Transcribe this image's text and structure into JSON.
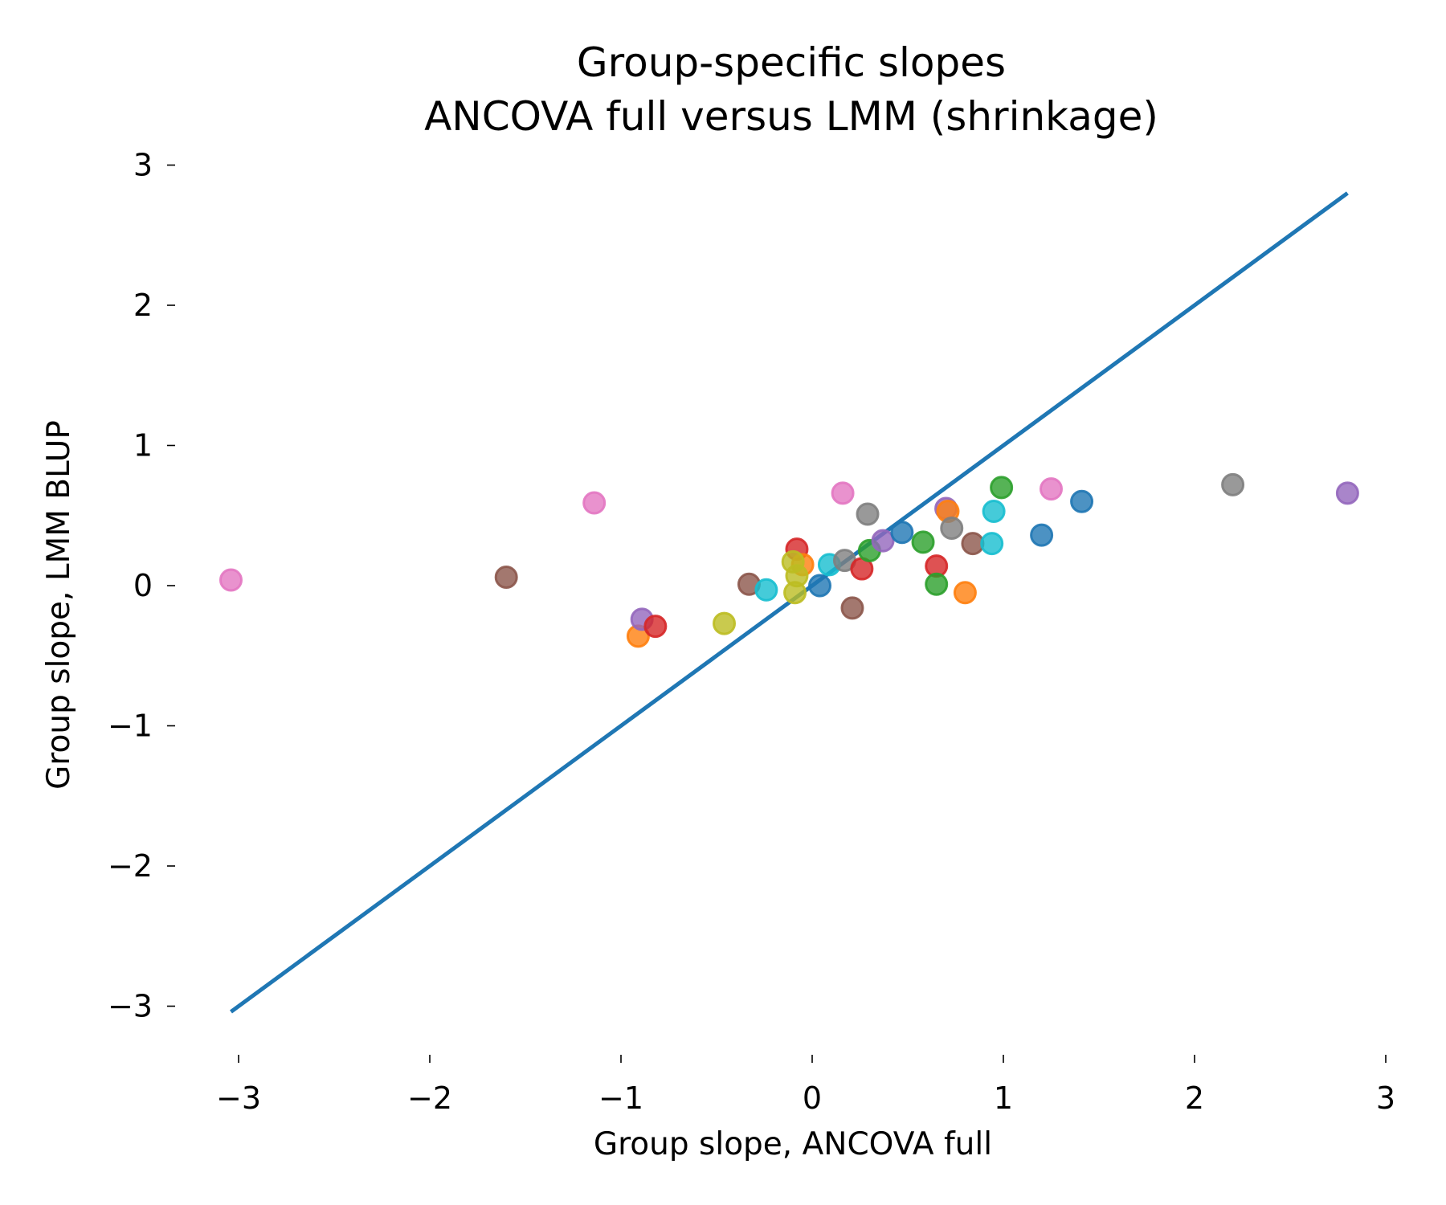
{
  "chart_data": {
    "type": "scatter",
    "title": "Group-specific slopes",
    "subtitle": "ANCOVA full versus LMM (shrinkage)",
    "xlabel": "Group slope, ANCOVA full",
    "ylabel": "Group slope, LMM BLUP",
    "xlim": [
      -3.2,
      3.0
    ],
    "ylim": [
      -3.3,
      3.0
    ],
    "xticks": [
      -3,
      -2,
      -1,
      0,
      1,
      2,
      3
    ],
    "yticks": [
      -3,
      -2,
      -1,
      0,
      1,
      2,
      3
    ],
    "xtick_labels": [
      "−3",
      "−2",
      "−1",
      "0",
      "1",
      "2",
      "3"
    ],
    "ytick_labels": [
      "−3",
      "−2",
      "−1",
      "0",
      "1",
      "2",
      "3"
    ],
    "grid": false,
    "reference_line": {
      "name": "identity y = x",
      "x": [
        -3.04,
        2.8
      ],
      "y": [
        -3.04,
        2.8
      ],
      "color": "#1f77b4"
    },
    "palette": {
      "blue": "#1f77b4",
      "orange": "#ff7f0e",
      "green": "#2ca02c",
      "red": "#d62728",
      "purple": "#9467bd",
      "brown": "#8c564b",
      "pink": "#e377c2",
      "gray": "#7f7f7f",
      "olive": "#bcbd22",
      "cyan": "#17becf"
    },
    "points": [
      {
        "x": -3.04,
        "y": 0.04,
        "color": "pink"
      },
      {
        "x": -1.6,
        "y": 0.06,
        "color": "brown"
      },
      {
        "x": -1.14,
        "y": 0.59,
        "color": "pink"
      },
      {
        "x": -0.91,
        "y": -0.36,
        "color": "orange"
      },
      {
        "x": -0.89,
        "y": -0.24,
        "color": "purple"
      },
      {
        "x": -0.82,
        "y": -0.29,
        "color": "red"
      },
      {
        "x": -0.46,
        "y": -0.27,
        "color": "olive"
      },
      {
        "x": -0.33,
        "y": 0.01,
        "color": "brown"
      },
      {
        "x": -0.24,
        "y": -0.03,
        "color": "cyan"
      },
      {
        "x": -0.08,
        "y": 0.26,
        "color": "red"
      },
      {
        "x": -0.05,
        "y": 0.15,
        "color": "orange"
      },
      {
        "x": -0.1,
        "y": 0.17,
        "color": "olive"
      },
      {
        "x": -0.08,
        "y": 0.07,
        "color": "olive"
      },
      {
        "x": -0.09,
        "y": -0.05,
        "color": "olive"
      },
      {
        "x": 0.04,
        "y": 0.0,
        "color": "blue"
      },
      {
        "x": 0.09,
        "y": 0.15,
        "color": "cyan"
      },
      {
        "x": 0.16,
        "y": 0.66,
        "color": "pink"
      },
      {
        "x": 0.17,
        "y": 0.18,
        "color": "gray"
      },
      {
        "x": 0.21,
        "y": -0.16,
        "color": "brown"
      },
      {
        "x": 0.26,
        "y": 0.12,
        "color": "red"
      },
      {
        "x": 0.29,
        "y": 0.51,
        "color": "gray"
      },
      {
        "x": 0.3,
        "y": 0.25,
        "color": "green"
      },
      {
        "x": 0.37,
        "y": 0.32,
        "color": "purple"
      },
      {
        "x": 0.47,
        "y": 0.38,
        "color": "blue"
      },
      {
        "x": 0.58,
        "y": 0.31,
        "color": "green"
      },
      {
        "x": 0.65,
        "y": 0.14,
        "color": "red"
      },
      {
        "x": 0.65,
        "y": 0.01,
        "color": "green"
      },
      {
        "x": 0.7,
        "y": 0.55,
        "color": "purple"
      },
      {
        "x": 0.71,
        "y": 0.53,
        "color": "orange"
      },
      {
        "x": 0.73,
        "y": 0.41,
        "color": "gray"
      },
      {
        "x": 0.8,
        "y": -0.05,
        "color": "orange"
      },
      {
        "x": 0.84,
        "y": 0.3,
        "color": "brown"
      },
      {
        "x": 0.94,
        "y": 0.3,
        "color": "cyan"
      },
      {
        "x": 0.95,
        "y": 0.53,
        "color": "cyan"
      },
      {
        "x": 0.99,
        "y": 0.7,
        "color": "green"
      },
      {
        "x": 1.2,
        "y": 0.36,
        "color": "blue"
      },
      {
        "x": 1.25,
        "y": 0.69,
        "color": "pink"
      },
      {
        "x": 1.41,
        "y": 0.6,
        "color": "blue"
      },
      {
        "x": 2.2,
        "y": 0.72,
        "color": "gray"
      },
      {
        "x": 2.8,
        "y": 0.66,
        "color": "purple"
      }
    ]
  }
}
